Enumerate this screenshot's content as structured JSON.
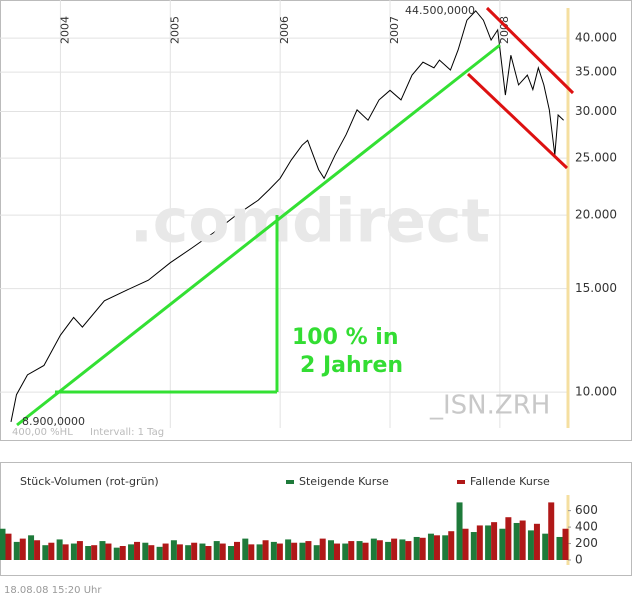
{
  "chart_data": [
    {
      "type": "line",
      "log_scale": true,
      "grid": true,
      "annotations": [
        "44.500,0000",
        "8.900,0000",
        "100 % in",
        "2 Jahren",
        "_ISN.ZRH",
        "400,00 %HL",
        "Intervall: 1 Tag",
        ".comdirect"
      ],
      "xlim": [
        2003.45,
        2008.62
      ],
      "xticks": [
        2004,
        2005,
        2006,
        2007,
        2008
      ],
      "ylim": [
        8690,
        45000
      ],
      "yticks": [
        {
          "value": 10000,
          "label": "10.000"
        },
        {
          "value": 15000,
          "label": "15.000"
        },
        {
          "value": 20000,
          "label": "20.000"
        },
        {
          "value": 25000,
          "label": "25.000"
        },
        {
          "value": 30000,
          "label": "30.000"
        },
        {
          "value": 35000,
          "label": "35.000"
        },
        {
          "value": 40000,
          "label": "40.000"
        }
      ],
      "x": [
        2003.55,
        2003.6,
        2003.7,
        2003.85,
        2004.0,
        2004.12,
        2004.2,
        2004.4,
        2004.6,
        2004.8,
        2005.0,
        2005.2,
        2005.4,
        2005.6,
        2005.8,
        2005.9,
        2006.0,
        2006.1,
        2006.2,
        2006.25,
        2006.35,
        2006.4,
        2006.5,
        2006.6,
        2006.7,
        2006.8,
        2006.9,
        2007.0,
        2007.1,
        2007.2,
        2007.3,
        2007.4,
        2007.45,
        2007.55,
        2007.62,
        2007.7,
        2007.78,
        2007.85,
        2007.92,
        2007.98,
        2008.05,
        2008.1,
        2008.17,
        2008.25,
        2008.3,
        2008.35,
        2008.4,
        2008.45,
        2008.5,
        2008.53,
        2008.58
      ],
      "series": [
        {
          "color": "#000000",
          "values": [
            8900,
            9900,
            10700,
            11100,
            12500,
            13400,
            12900,
            14300,
            14900,
            15500,
            16600,
            17600,
            18700,
            20000,
            21200,
            22100,
            23100,
            24800,
            26300,
            26800,
            23900,
            23100,
            25300,
            27400,
            30200,
            29000,
            31400,
            32600,
            31400,
            34600,
            36400,
            35600,
            36700,
            35300,
            38200,
            42900,
            44500,
            42900,
            39700,
            41300,
            32000,
            37400,
            33300,
            34600,
            32700,
            35600,
            33300,
            30200,
            25300,
            29600,
            29000
          ]
        }
      ]
    },
    {
      "type": "bar",
      "title": "Stück-Volumen (rot-grün)",
      "xlim": [
        2003.45,
        2008.62
      ],
      "ylim": [
        0,
        790
      ],
      "yticks": [
        0,
        200,
        400,
        600
      ],
      "x": [
        2003.5,
        2003.63,
        2003.76,
        2003.89,
        2004.02,
        2004.15,
        2004.28,
        2004.41,
        2004.54,
        2004.67,
        2004.8,
        2004.93,
        2005.06,
        2005.19,
        2005.32,
        2005.45,
        2005.58,
        2005.71,
        2005.84,
        2005.97,
        2006.1,
        2006.23,
        2006.36,
        2006.49,
        2006.62,
        2006.75,
        2006.88,
        2007.01,
        2007.14,
        2007.27,
        2007.4,
        2007.53,
        2007.66,
        2007.79,
        2007.92,
        2008.05,
        2008.18,
        2008.31,
        2008.44,
        2008.57
      ],
      "series": [
        {
          "name": "Steigende Kurse",
          "color": "#1e7a3a",
          "values": [
            380,
            220,
            300,
            180,
            250,
            200,
            170,
            230,
            150,
            190,
            210,
            160,
            240,
            180,
            200,
            230,
            170,
            260,
            190,
            220,
            250,
            210,
            180,
            240,
            200,
            230,
            260,
            220,
            250,
            280,
            320,
            300,
            700,
            340,
            420,
            380,
            450,
            360,
            320,
            280
          ]
        },
        {
          "name": "Fallende Kurse",
          "color": "#b01818",
          "values": [
            320,
            260,
            240,
            210,
            190,
            230,
            180,
            200,
            170,
            220,
            180,
            200,
            190,
            210,
            170,
            200,
            220,
            190,
            240,
            200,
            210,
            230,
            260,
            200,
            230,
            210,
            240,
            260,
            230,
            270,
            300,
            350,
            380,
            420,
            460,
            520,
            480,
            440,
            700,
            380
          ]
        }
      ]
    }
  ],
  "timestamp": "18.08.08   15:20 Uhr"
}
